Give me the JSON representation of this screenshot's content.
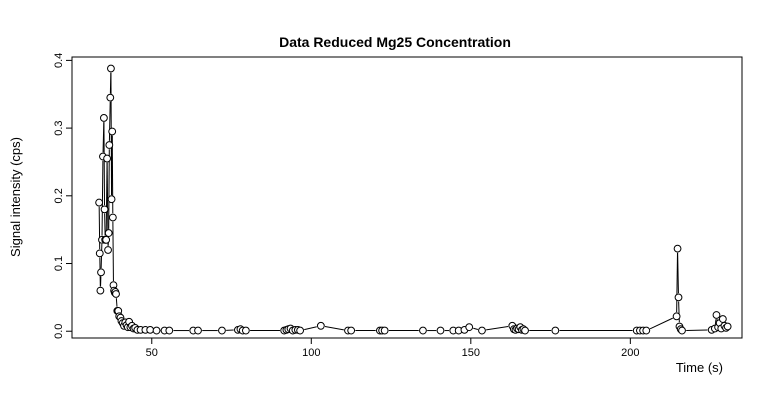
{
  "chart_data": {
    "type": "scatter",
    "title": "Data Reduced Mg25 Concentration",
    "xlabel": "Time (s)",
    "ylabel": "Signal intensity (cps)",
    "xlim": [
      25,
      235
    ],
    "ylim": [
      -0.01,
      0.405
    ],
    "x_ticks": [
      50,
      100,
      150,
      200
    ],
    "y_ticks": [
      0.0,
      0.1,
      0.2,
      0.3,
      0.4
    ],
    "x_tick_labels": [
      "50",
      "100",
      "150",
      "200"
    ],
    "y_tick_labels": [
      "0.0",
      "0.1",
      "0.2",
      "0.3",
      "0.4"
    ],
    "grid": false,
    "style": "points with connecting vertical segments",
    "points": [
      [
        33.5,
        0.19
      ],
      [
        33.7,
        0.115
      ],
      [
        33.9,
        0.06
      ],
      [
        34.1,
        0.087
      ],
      [
        34.4,
        0.135
      ],
      [
        34.7,
        0.258
      ],
      [
        35.0,
        0.315
      ],
      [
        35.2,
        0.18
      ],
      [
        35.4,
        0.135
      ],
      [
        35.7,
        0.135
      ],
      [
        36.0,
        0.255
      ],
      [
        36.3,
        0.12
      ],
      [
        36.5,
        0.145
      ],
      [
        36.7,
        0.275
      ],
      [
        37.0,
        0.345
      ],
      [
        37.2,
        0.388
      ],
      [
        37.4,
        0.195
      ],
      [
        37.6,
        0.295
      ],
      [
        37.8,
        0.168
      ],
      [
        38.0,
        0.068
      ],
      [
        38.2,
        0.06
      ],
      [
        38.4,
        0.057
      ],
      [
        38.6,
        0.058
      ],
      [
        38.8,
        0.055
      ],
      [
        39.2,
        0.03
      ],
      [
        39.5,
        0.03
      ],
      [
        39.8,
        0.022
      ],
      [
        40.2,
        0.02
      ],
      [
        40.5,
        0.015
      ],
      [
        40.9,
        0.012
      ],
      [
        41.3,
        0.008
      ],
      [
        41.7,
        0.013
      ],
      [
        42.1,
        0.009
      ],
      [
        42.5,
        0.006
      ],
      [
        42.9,
        0.014
      ],
      [
        43.3,
        0.006
      ],
      [
        43.8,
        0.008
      ],
      [
        44.3,
        0.004
      ],
      [
        44.8,
        0.005
      ],
      [
        45.5,
        0.002
      ],
      [
        46.5,
        0.002
      ],
      [
        48.0,
        0.002
      ],
      [
        49.5,
        0.002
      ],
      [
        51.5,
        0.001
      ],
      [
        54.0,
        0.001
      ],
      [
        55.5,
        0.001
      ],
      [
        63.0,
        0.001
      ],
      [
        64.5,
        0.001
      ],
      [
        72.0,
        0.001
      ],
      [
        77.0,
        0.002
      ],
      [
        77.8,
        0.003
      ],
      [
        78.5,
        0.001
      ],
      [
        79.5,
        0.001
      ],
      [
        91.5,
        0.001
      ],
      [
        92.2,
        0.002
      ],
      [
        92.8,
        0.003
      ],
      [
        93.5,
        0.004
      ],
      [
        94.2,
        0.001
      ],
      [
        95.0,
        0.002
      ],
      [
        95.8,
        0.002
      ],
      [
        96.5,
        0.001
      ],
      [
        103.0,
        0.008
      ],
      [
        111.5,
        0.001
      ],
      [
        112.5,
        0.001
      ],
      [
        121.5,
        0.001
      ],
      [
        122.2,
        0.001
      ],
      [
        123.0,
        0.001
      ],
      [
        135.0,
        0.001
      ],
      [
        140.5,
        0.001
      ],
      [
        144.5,
        0.001
      ],
      [
        146.2,
        0.001
      ],
      [
        148.0,
        0.002
      ],
      [
        149.5,
        0.006
      ],
      [
        153.5,
        0.001
      ],
      [
        163.0,
        0.008
      ],
      [
        163.5,
        0.003
      ],
      [
        164.0,
        0.002
      ],
      [
        164.5,
        0.004
      ],
      [
        165.0,
        0.003
      ],
      [
        165.5,
        0.006
      ],
      [
        166.0,
        0.002
      ],
      [
        166.5,
        0.003
      ],
      [
        167.0,
        0.001
      ],
      [
        176.5,
        0.001
      ],
      [
        202.0,
        0.001
      ],
      [
        203.0,
        0.001
      ],
      [
        204.0,
        0.001
      ],
      [
        205.0,
        0.001
      ],
      [
        214.5,
        0.022
      ],
      [
        214.8,
        0.122
      ],
      [
        215.1,
        0.05
      ],
      [
        215.4,
        0.007
      ],
      [
        215.8,
        0.003
      ],
      [
        216.2,
        0.001
      ],
      [
        225.5,
        0.002
      ],
      [
        226.5,
        0.004
      ],
      [
        227.0,
        0.024
      ],
      [
        227.5,
        0.006
      ],
      [
        228.0,
        0.012
      ],
      [
        228.5,
        0.004
      ],
      [
        229.0,
        0.018
      ],
      [
        229.5,
        0.008
      ],
      [
        230.0,
        0.005
      ],
      [
        230.5,
        0.007
      ]
    ]
  }
}
